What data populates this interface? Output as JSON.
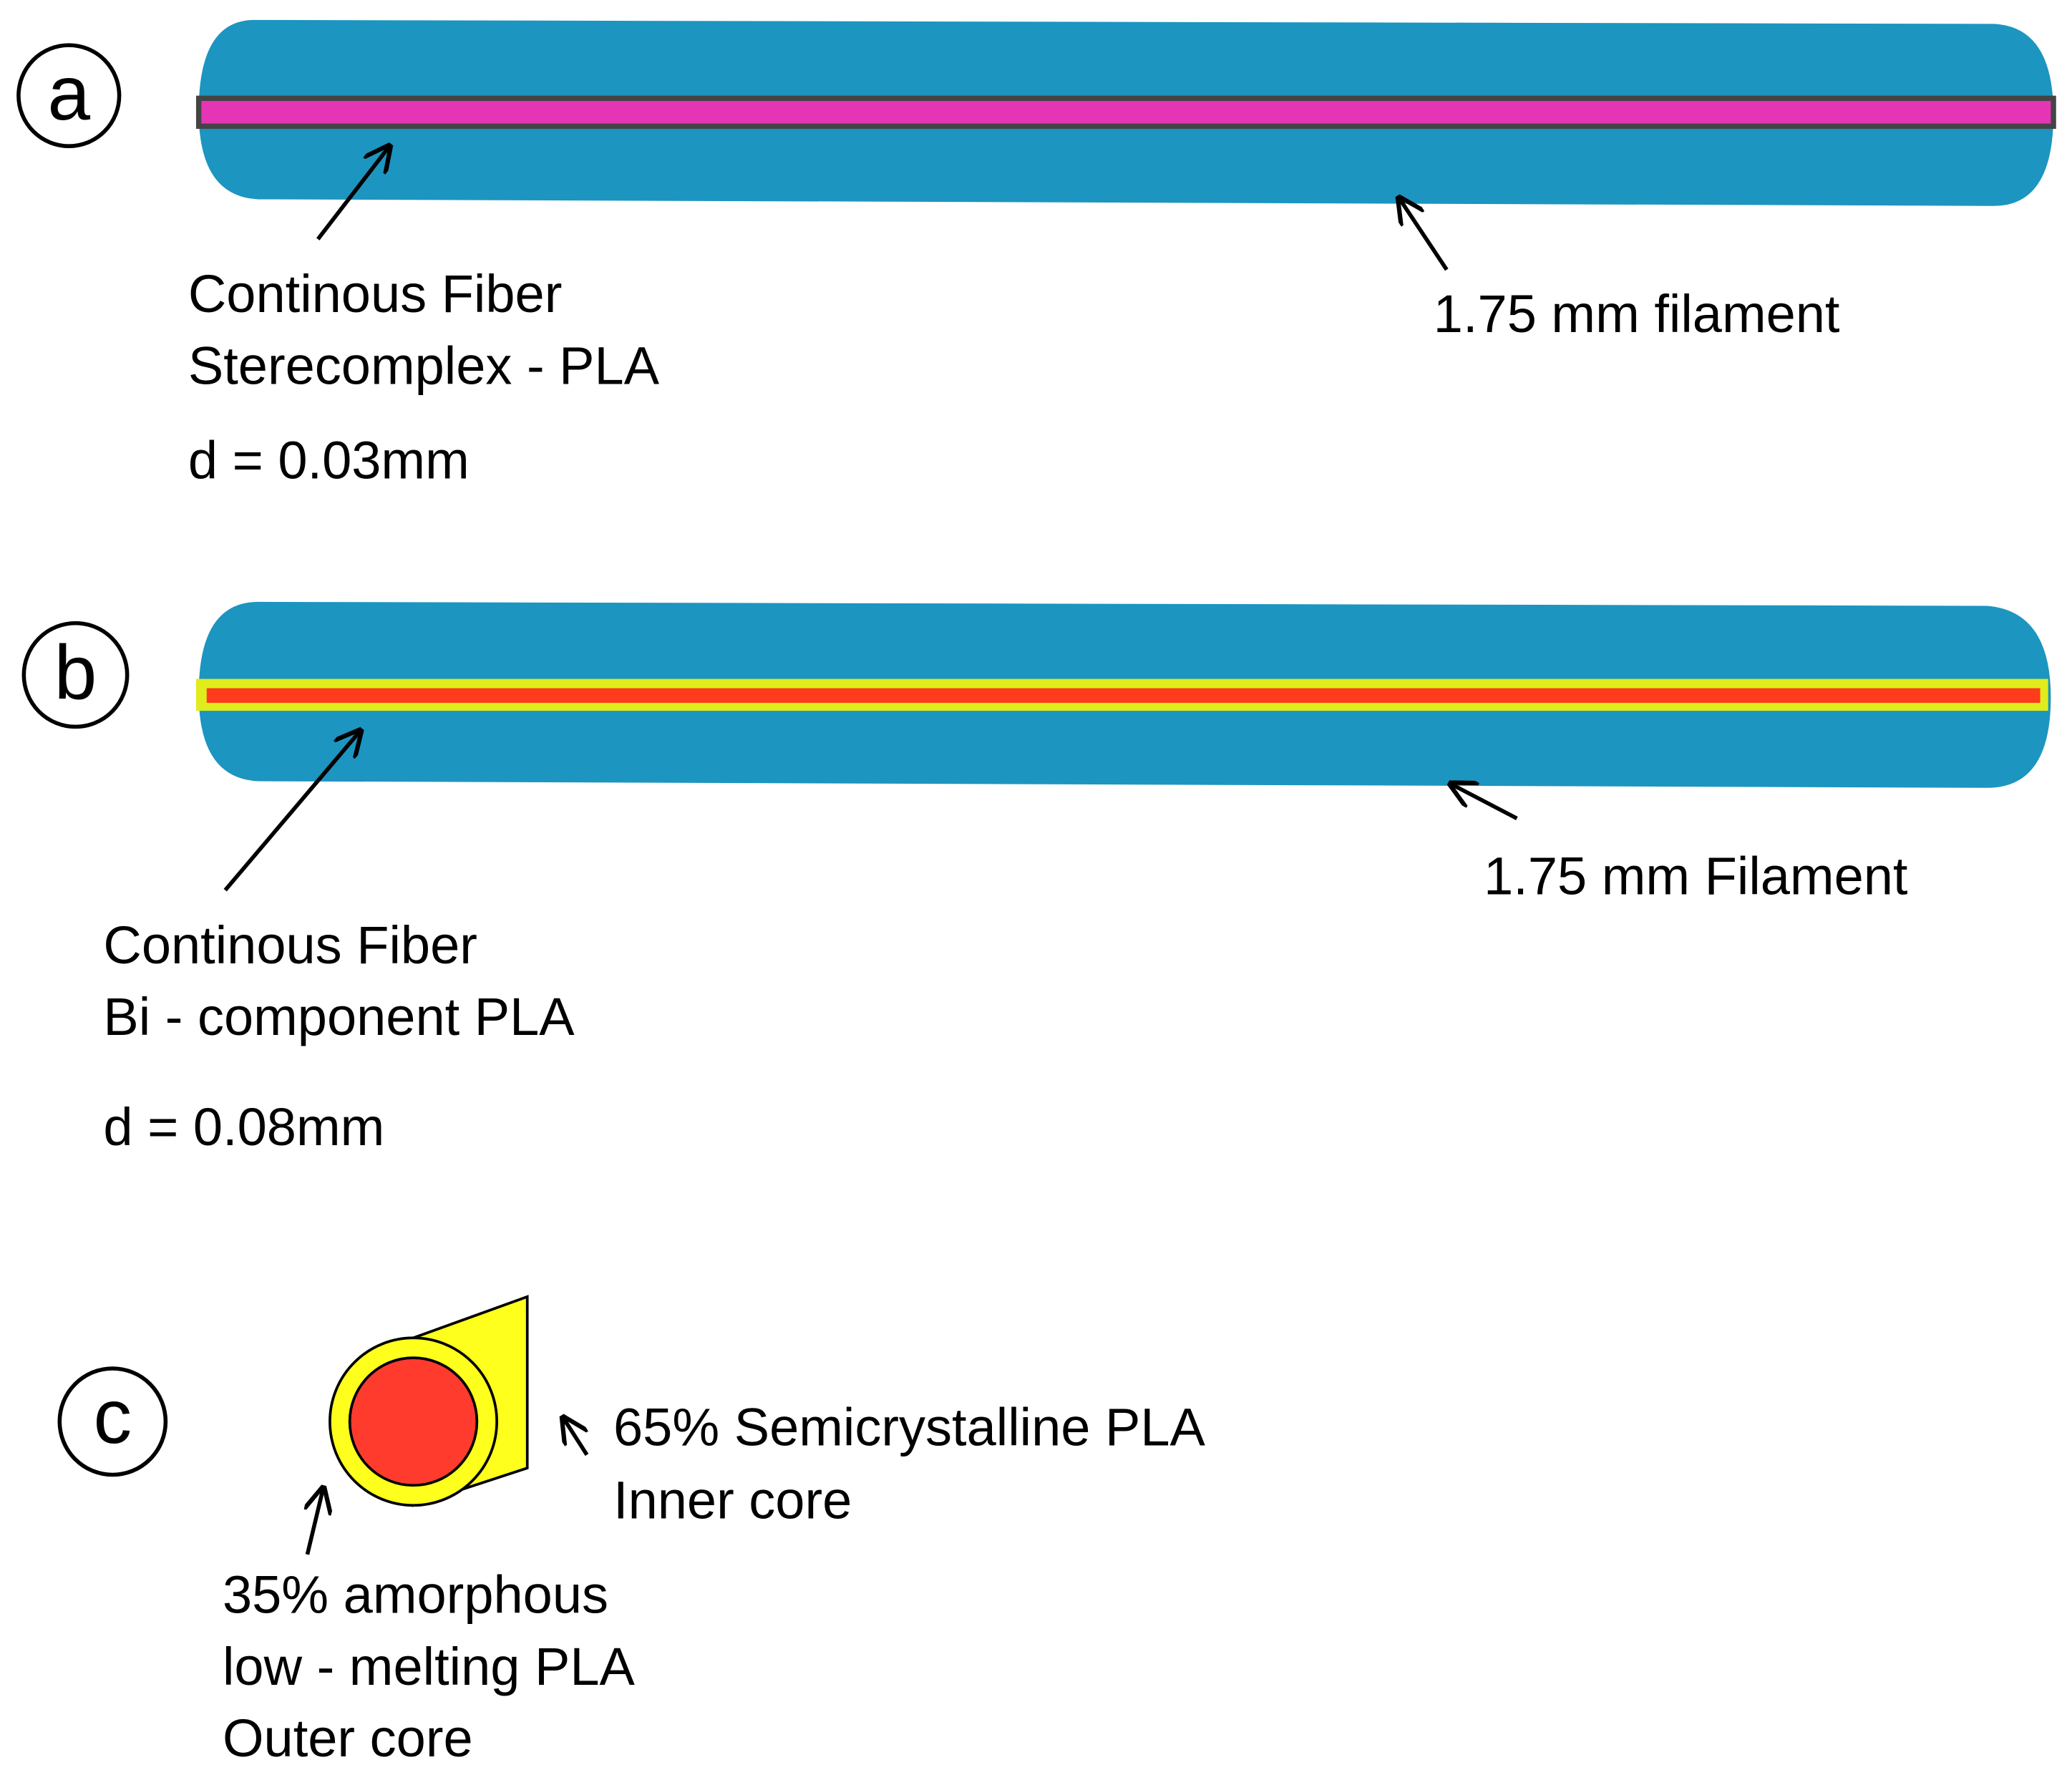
{
  "panel_a": {
    "letter": "a",
    "fiber_label": [
      "Continous Fiber",
      "Sterecomplex - PLA"
    ],
    "diameter": "d = 0.03mm",
    "filament_label": "1.75 mm filament"
  },
  "panel_b": {
    "letter": "b",
    "fiber_label": [
      "Continous Fiber",
      "Bi - component PLA"
    ],
    "diameter": "d = 0.08mm",
    "filament_label": "1.75 mm Filament"
  },
  "panel_c": {
    "letter": "c",
    "inner_label": [
      "65% Semicrystalline PLA",
      "Inner core"
    ],
    "outer_label": [
      "35% amorphous",
      "low - melting PLA",
      "Outer core"
    ]
  }
}
